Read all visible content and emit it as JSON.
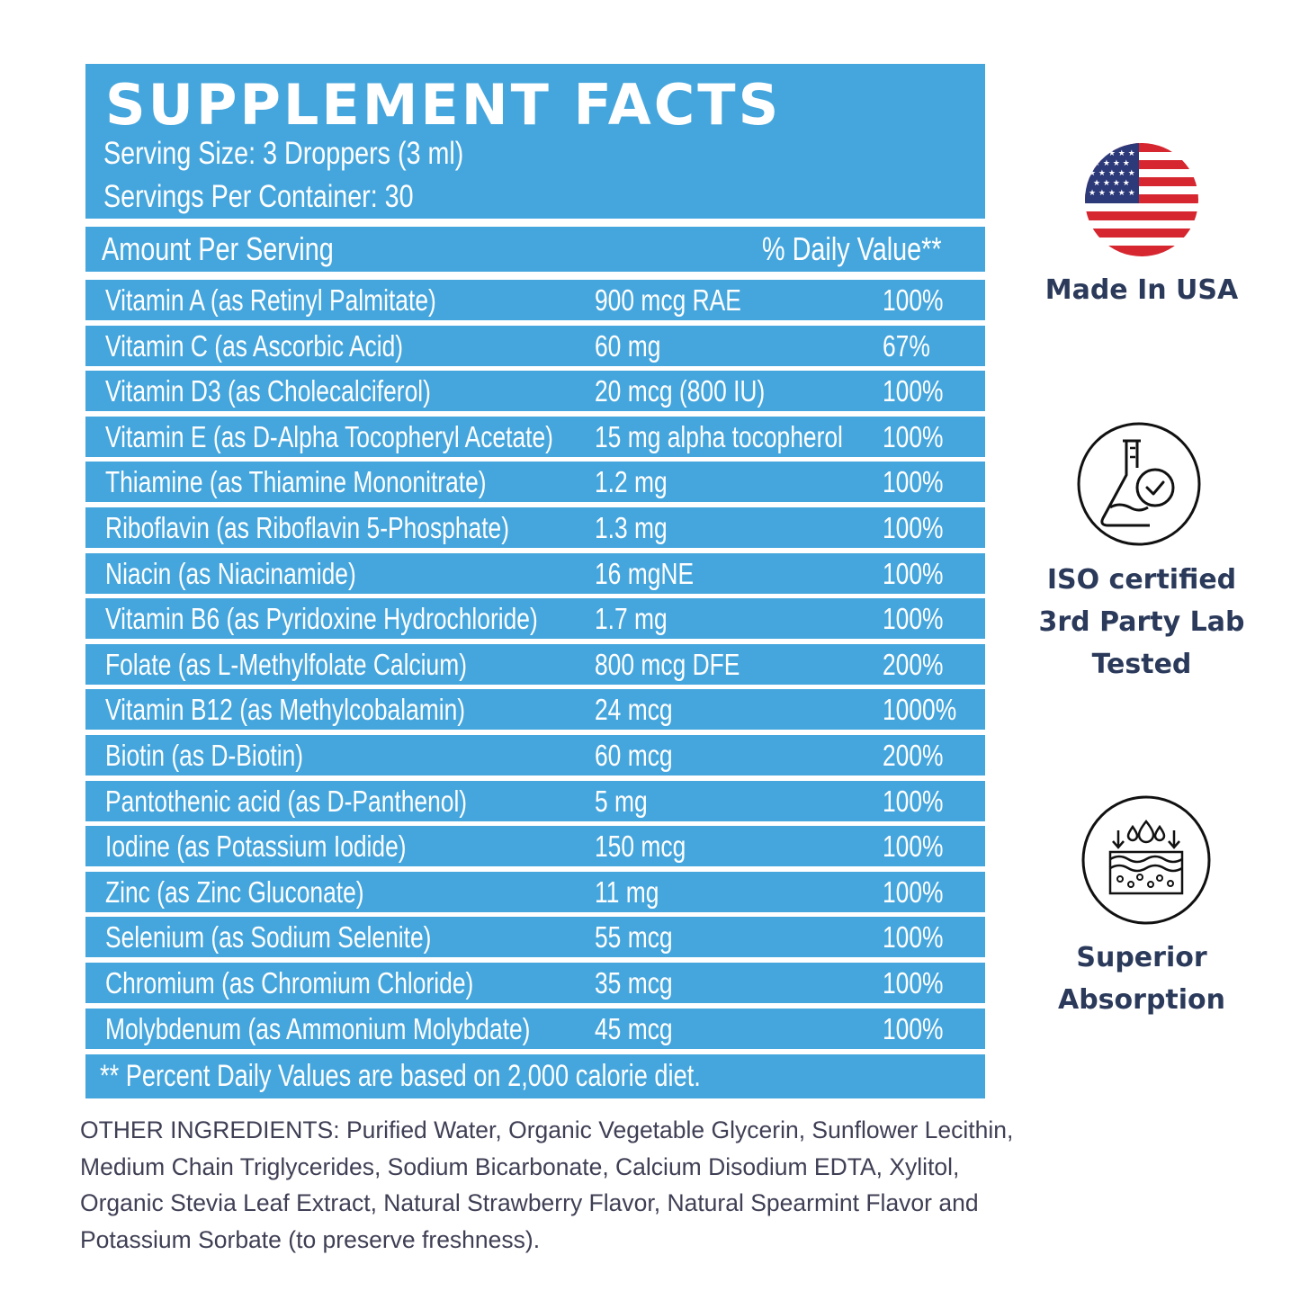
{
  "facts": {
    "title": "SUPPLEMENT FACTS",
    "serving_size": "Serving Size: 3 Droppers (3 ml)",
    "servings_per_container": "Servings Per Container: 30",
    "amount_header": "Amount Per Serving",
    "dv_header": "% Daily Value**",
    "rows": [
      {
        "name": "Vitamin A (as Retinyl Palmitate)",
        "amount": "900 mcg RAE",
        "dv": "100%"
      },
      {
        "name": "Vitamin C (as Ascorbic Acid)",
        "amount": "60 mg",
        "dv": "67%"
      },
      {
        "name": "Vitamin D3 (as Cholecalciferol)",
        "amount": "20 mcg (800 IU)",
        "dv": "100%"
      },
      {
        "name": "Vitamin E (as D-Alpha Tocopheryl Acetate)",
        "amount": "15 mg alpha tocopherol",
        "dv": "100%"
      },
      {
        "name": "Thiamine (as Thiamine Mononitrate)",
        "amount": "1.2 mg",
        "dv": "100%"
      },
      {
        "name": "Riboflavin (as Riboflavin 5-Phosphate)",
        "amount": "1.3 mg",
        "dv": "100%"
      },
      {
        "name": "Niacin (as Niacinamide)",
        "amount": "16 mgNE",
        "dv": "100%"
      },
      {
        "name": "Vitamin B6 (as Pyridoxine Hydrochloride)",
        "amount": "1.7 mg",
        "dv": "100%"
      },
      {
        "name": "Folate (as L-Methylfolate Calcium)",
        "amount": "800 mcg DFE",
        "dv": "200%"
      },
      {
        "name": "Vitamin B12 (as Methylcobalamin)",
        "amount": "24 mcg",
        "dv": "1000%"
      },
      {
        "name": "Biotin (as D-Biotin)",
        "amount": "60 mcg",
        "dv": "200%"
      },
      {
        "name": "Pantothenic acid (as D-Panthenol)",
        "amount": "5 mg",
        "dv": "100%"
      },
      {
        "name": "Iodine (as Potassium Iodide)",
        "amount": "150 mcg",
        "dv": "100%"
      },
      {
        "name": "Zinc (as Zinc Gluconate)",
        "amount": "11 mg",
        "dv": "100%"
      },
      {
        "name": "Selenium (as Sodium Selenite)",
        "amount": "55 mcg",
        "dv": "100%"
      },
      {
        "name": "Chromium (as Chromium Chloride)",
        "amount": "35 mcg",
        "dv": "100%"
      },
      {
        "name": "Molybdenum (as Ammonium Molybdate)",
        "amount": "45 mcg",
        "dv": "100%"
      }
    ],
    "footnote": "** Percent Daily Values are based on 2,000 calorie diet."
  },
  "other_ingredients": "OTHER INGREDIENTS: Purified Water, Organic Vegetable Glycerin, Sunflower Lecithin, Medium Chain Triglycerides, Sodium Bicarbonate, Calcium Disodium EDTA, Xylitol, Organic Stevia Leaf Extract, Natural Strawberry Flavor, Natural Spearmint Flavor and Potassium Sorbate (to preserve freshness).",
  "badges": {
    "usa": {
      "label": "Made In USA",
      "icon": "us-flag-icon"
    },
    "iso": {
      "line1": "ISO certified",
      "line2": "3rd Party Lab",
      "line3": "Tested",
      "icon": "lab-flask-check-icon"
    },
    "absorption": {
      "line1": "Superior",
      "line2": "Absorption",
      "icon": "skin-absorption-icon"
    }
  },
  "colors": {
    "panel_blue": "#45a6dd",
    "badge_text": "#2b3a5a",
    "ingredients_text": "#3f3f55",
    "flag_red": "#d6262f",
    "flag_blue": "#2d3a7a"
  }
}
